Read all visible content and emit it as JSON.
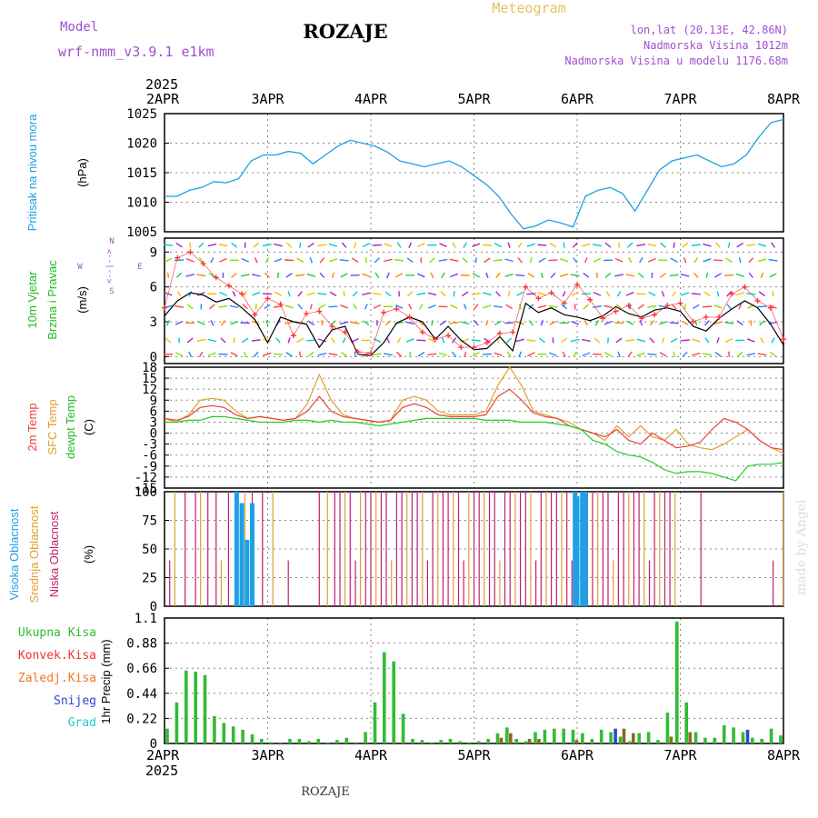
{
  "header": {
    "model_label": "Model",
    "model_name": "wrf-nmm_v3.9.1 e1km",
    "station": "ROZAJE",
    "product": "Meteogram",
    "lonlat": "lon,lat (20.13E, 42.86N)",
    "elev": "Nadmorska Visina 1012m",
    "elev_model": "Nadmorska Visina u modelu 1176.68m",
    "footer": "ROZAJE",
    "credit": "made by Angel"
  },
  "colors": {
    "pressure": "#1ea0e6",
    "wind_speed": "#000000",
    "gust": "#ff3030",
    "t2m": "#e8443a",
    "sfc": "#e0a030",
    "dew": "#22cc22",
    "high_cloud": "#1ea0e6",
    "mid_cloud": "#e0a030",
    "low_cloud": "#c0206a",
    "total_precip": "#33bb33",
    "conv_precip": "#ee3333",
    "frozen_precip": "#ee7722",
    "snow": "#3344cc",
    "grad": "#22cccc"
  },
  "chart_data": [
    {
      "type": "line",
      "panel": "pressure",
      "ylabel_a": "Pritisak na nivou mora",
      "ylabel_b": "(hPa)",
      "top_year": "2025",
      "x_ticks": [
        "2APR",
        "3APR",
        "4APR",
        "5APR",
        "6APR",
        "7APR",
        "8APR"
      ],
      "ylim": [
        1005,
        1025
      ],
      "y_ticks": [
        "1005",
        "1010",
        "1015",
        "1020",
        "1025"
      ],
      "grid": true,
      "series": [
        {
          "values": [
            1011,
            1011,
            1012,
            1012.5,
            1013.5,
            1013.3,
            1014,
            1017,
            1018,
            1018,
            1018.6,
            1018.3,
            1016.5,
            1018,
            1019.5,
            1020.5,
            1020,
            1019.5,
            1018.5,
            1017,
            1016.5,
            1016,
            1016.5,
            1017,
            1016,
            1014.5,
            1013,
            1011,
            1008,
            1005.5,
            1006,
            1007,
            1006.5,
            1005.8,
            1011,
            1012,
            1012.5,
            1011.5,
            1008.5,
            1012,
            1015.5,
            1017,
            1017.5,
            1018,
            1017,
            1016,
            1016.5,
            1018,
            1021,
            1023.5,
            1024
          ]
        }
      ]
    },
    {
      "type": "line",
      "panel": "wind",
      "ylabel_a": "10m Vjetar",
      "ylabel_b": "Brzina i Pravac",
      "ylabel_c": "(m/s)",
      "compass": {
        "n": "N",
        "s": "S",
        "e": "E",
        "w": "W",
        "arrow": "<--|-->"
      },
      "ylim": [
        -0.6,
        10.2
      ],
      "y_ticks": [
        "0",
        "3",
        "6",
        "9"
      ],
      "grid": true,
      "series": [
        {
          "values": [
            3.5,
            4.8,
            5.5,
            5.3,
            4.7,
            5.0,
            4.2,
            3.2,
            1.2,
            3.4,
            3.0,
            2.8,
            0.8,
            2.3,
            2.6,
            0.2,
            0.1,
            1.2,
            2.9,
            3.4,
            3.0,
            1.5,
            2.6,
            1.4,
            0.6,
            0.7,
            1.7,
            0.5,
            4.6,
            3.8,
            4.2,
            3.6,
            3.4,
            3.1,
            3.5,
            4.3,
            3.7,
            3.4,
            4.0,
            4.2,
            3.9,
            2.6,
            2.2,
            3.3,
            4.1,
            4.8,
            4.2,
            2.8,
            1.0
          ]
        },
        {
          "values": [
            4.2,
            8.5,
            9.0,
            8.0,
            6.8,
            6.1,
            5.4,
            3.6,
            5.0,
            4.5,
            1.8,
            3.7,
            3.9,
            2.6,
            2.1,
            0.4,
            0.3,
            3.8,
            4.1,
            3.4,
            2.1,
            1.5,
            1.8,
            0.8,
            0.8,
            1.2,
            2.0,
            2.1,
            6.0,
            5.0,
            5.5,
            4.6,
            6.2,
            4.9,
            3.3,
            3.9,
            4.4,
            3.3,
            3.6,
            4.4,
            4.6,
            3.0,
            3.4,
            3.4,
            5.4,
            6.0,
            4.8,
            4.2,
            1.5
          ]
        }
      ]
    },
    {
      "type": "line",
      "panel": "temperature",
      "ylabel_a": "2m Temp",
      "ylabel_b": "SFC Temp",
      "ylabel_c": "dewpt Temp",
      "ylabel_d": "(C)",
      "ylim": [
        -15,
        18
      ],
      "y_ticks": [
        "18",
        "15",
        "12",
        "9",
        "6",
        "3",
        "0",
        "-3",
        "-6",
        "-9",
        "-12",
        "-15"
      ],
      "grid": true,
      "series": [
        {
          "values": [
            4,
            3.5,
            4.5,
            7,
            7.5,
            7,
            5,
            4,
            4.5,
            4,
            3.5,
            4,
            6,
            10,
            6,
            4.5,
            4,
            3.5,
            3,
            3.5,
            7,
            8,
            7,
            5,
            4.5,
            4.5,
            4.5,
            5,
            10,
            12,
            9,
            5.5,
            4.5,
            4,
            2,
            1,
            0,
            -1,
            1,
            -2,
            -3,
            0,
            -2,
            -4,
            -3.5,
            -2.5,
            1,
            4,
            3,
            1,
            -2,
            -4,
            -4.5
          ]
        },
        {
          "values": [
            4,
            3,
            5,
            9,
            9.5,
            9,
            6,
            4,
            4.5,
            4,
            3.5,
            4,
            8,
            16,
            9,
            5,
            4,
            3.5,
            3,
            3.5,
            9,
            10,
            9,
            6,
            5,
            5,
            5,
            6,
            13,
            18,
            13,
            6,
            5,
            4,
            3,
            1,
            0,
            -2,
            2,
            -1,
            2,
            -1,
            -2,
            1,
            -3,
            -4,
            -4.5,
            -3,
            -1,
            1,
            -2,
            -4,
            -5.5
          ]
        },
        {
          "values": [
            3,
            3,
            3.5,
            3.5,
            4.5,
            4.5,
            4,
            3.5,
            3,
            3,
            3,
            3.5,
            3.5,
            3,
            3.5,
            3,
            3,
            2.5,
            2,
            2.5,
            3,
            3.5,
            4,
            4,
            4,
            4,
            4,
            3.5,
            3.5,
            3.5,
            3,
            3,
            3,
            2.5,
            2,
            1,
            -2,
            -3,
            -5,
            -6,
            -6.5,
            -8,
            -10,
            -11,
            -10.5,
            -10.5,
            -11,
            -12,
            -13,
            -9,
            -8.5,
            -8.5,
            -8
          ]
        }
      ]
    },
    {
      "type": "bar",
      "panel": "clouds",
      "ylabel_a": "Visoka Oblacnost",
      "ylabel_b": "Srednja Oblacnost",
      "ylabel_c": "Niska Oblacnost",
      "ylabel_d": "(%)",
      "ylim": [
        0,
        100
      ],
      "y_ticks": [
        "0",
        "25",
        "50",
        "75",
        "100"
      ],
      "grid": true
    },
    {
      "type": "bar",
      "panel": "precipitation",
      "legend": [
        "Ukupna Kisa",
        "Konvek.Kisa",
        "Zaledj.Kisa",
        "Snijeg",
        "Grad"
      ],
      "ylabel_a": "1hr Precip (mm)",
      "ylim": [
        0,
        1.1
      ],
      "y_ticks": [
        "0",
        "0.22",
        "0.44",
        "0.66",
        "0.88",
        "1.1"
      ],
      "grid": true,
      "bottom_year": "2025",
      "x_ticks": [
        "2APR",
        "3APR",
        "4APR",
        "5APR",
        "6APR",
        "7APR",
        "8APR"
      ],
      "total": [
        0.13,
        0.36,
        0.64,
        0.63,
        0.6,
        0.24,
        0.18,
        0.15,
        0.12,
        0.08,
        0.04,
        0.01,
        0.01,
        0.04,
        0.04,
        0.02,
        0.04,
        0.01,
        0.03,
        0.05,
        0.01,
        0.1,
        0.36,
        0.8,
        0.72,
        0.26,
        0.04,
        0.03,
        0.01,
        0.03,
        0.04,
        0.02,
        0.01,
        0.02,
        0.04,
        0.09,
        0.14,
        0.04,
        0.02,
        0.1,
        0.12,
        0.13,
        0.13,
        0.12,
        0.09,
        0.04,
        0.12,
        0.1,
        0.06,
        0.02,
        0.09,
        0.1,
        0.03,
        0.27,
        1.07,
        0.36,
        0.1,
        0.05,
        0.05,
        0.16,
        0.14,
        0.1,
        0.05,
        0.04,
        0.13,
        0.07
      ],
      "snow_x": [
        47,
        61
      ],
      "snow": [
        0.13,
        0.12
      ],
      "brown_x": [
        35,
        36,
        38,
        39,
        43,
        48,
        49,
        53,
        55
      ],
      "brown": [
        0.05,
        0.09,
        0.04,
        0.04,
        0.03,
        0.13,
        0.09,
        0.06,
        0.1
      ]
    }
  ]
}
